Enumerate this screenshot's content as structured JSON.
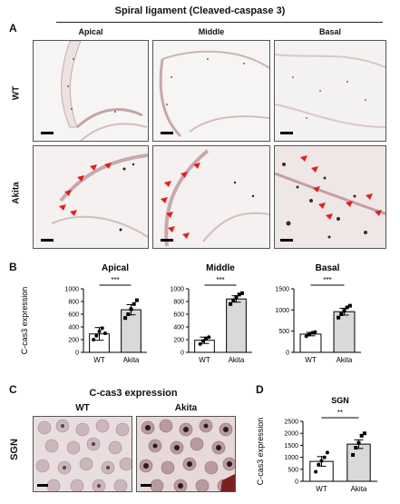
{
  "title": "Spiral ligament (Cleaved-caspase 3)",
  "panel_letters": {
    "a": "A",
    "b": "B",
    "c": "C",
    "d": "D"
  },
  "panel_a": {
    "columns": [
      "Apical",
      "Middle",
      "Basal"
    ],
    "rows": [
      "WT",
      "Akita"
    ]
  },
  "panel_c": {
    "title": "C-cas3 expression",
    "row_label": "SGN",
    "columns": [
      "WT",
      "Akita"
    ]
  },
  "colors": {
    "panel_border": "#555555",
    "tissue_bg": "#f2eeee",
    "wt_bar": "#ffffff",
    "akita_bar": "#d9d9d9",
    "arrow": "#e02020"
  },
  "chart_data": [
    {
      "type": "bar",
      "title": "Apical",
      "categories": [
        "WT",
        "Akita"
      ],
      "values": [
        290,
        670
      ],
      "errors": [
        100,
        80
      ],
      "points": [
        [
          200,
          260,
          330,
          380,
          300
        ],
        [
          540,
          600,
          680,
          760,
          820
        ]
      ],
      "ylabel": "C-cas3 expression",
      "ylim": [
        0,
        1000
      ],
      "yticks": [
        0,
        200,
        400,
        600,
        800,
        1000
      ],
      "significance": "***"
    },
    {
      "type": "bar",
      "title": "Middle",
      "categories": [
        "WT",
        "Akita"
      ],
      "values": [
        190,
        840
      ],
      "errors": [
        50,
        50
      ],
      "points": [
        [
          130,
          180,
          210,
          240
        ],
        [
          760,
          820,
          870,
          910,
          930
        ]
      ],
      "ylabel": "",
      "ylim": [
        0,
        1000
      ],
      "yticks": [
        0,
        200,
        400,
        600,
        800,
        1000
      ],
      "significance": "***"
    },
    {
      "type": "bar",
      "title": "Basal",
      "categories": [
        "WT",
        "Akita"
      ],
      "values": [
        430,
        960
      ],
      "errors": [
        40,
        80
      ],
      "points": [
        [
          380,
          420,
          460,
          480
        ],
        [
          820,
          900,
          980,
          1060,
          1100
        ]
      ],
      "ylabel": "",
      "ylim": [
        0,
        1500
      ],
      "yticks": [
        0,
        500,
        1000,
        1500
      ],
      "significance": "***"
    },
    {
      "type": "bar",
      "title": "SGN",
      "categories": [
        "WT",
        "Akita"
      ],
      "values": [
        830,
        1550
      ],
      "errors": [
        200,
        180
      ],
      "points": [
        [
          400,
          700,
          850,
          1000,
          1200
        ],
        [
          1100,
          1400,
          1600,
          1900,
          2000
        ]
      ],
      "ylabel": "C-cas3 expression",
      "ylim": [
        0,
        2500
      ],
      "yticks": [
        0,
        500,
        1000,
        1500,
        2000,
        2500
      ],
      "significance": "**"
    }
  ]
}
